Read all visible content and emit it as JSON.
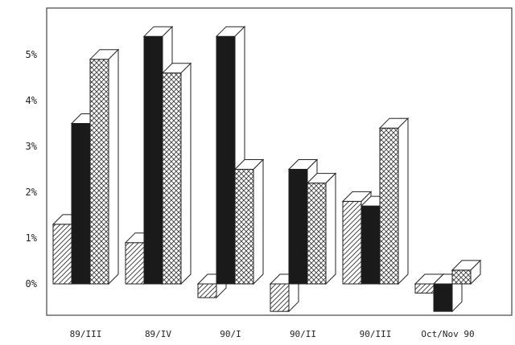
{
  "chart_data": {
    "type": "bar",
    "style": "3d-clustered",
    "categories": [
      "89/III",
      "89/IV",
      "90/I",
      "90/II",
      "90/III",
      "Oct/Nov 90"
    ],
    "series": [
      {
        "pattern": "diagonal-hatch",
        "values": [
          1.3,
          0.9,
          -0.3,
          -0.6,
          1.8,
          -0.2
        ]
      },
      {
        "pattern": "solid-black",
        "values": [
          3.5,
          5.4,
          5.4,
          2.5,
          1.7,
          -0.6
        ]
      },
      {
        "pattern": "crosshatch",
        "values": [
          4.9,
          4.6,
          2.5,
          2.2,
          3.4,
          0.3
        ]
      }
    ],
    "yticks": [
      "0%",
      "1%",
      "2%",
      "3%",
      "4%",
      "5%"
    ],
    "ylim": [
      -0.9,
      5.8
    ],
    "colors": {
      "solid": "#1a1a1a",
      "hatch": "#333333",
      "face": "#ffffff"
    }
  }
}
